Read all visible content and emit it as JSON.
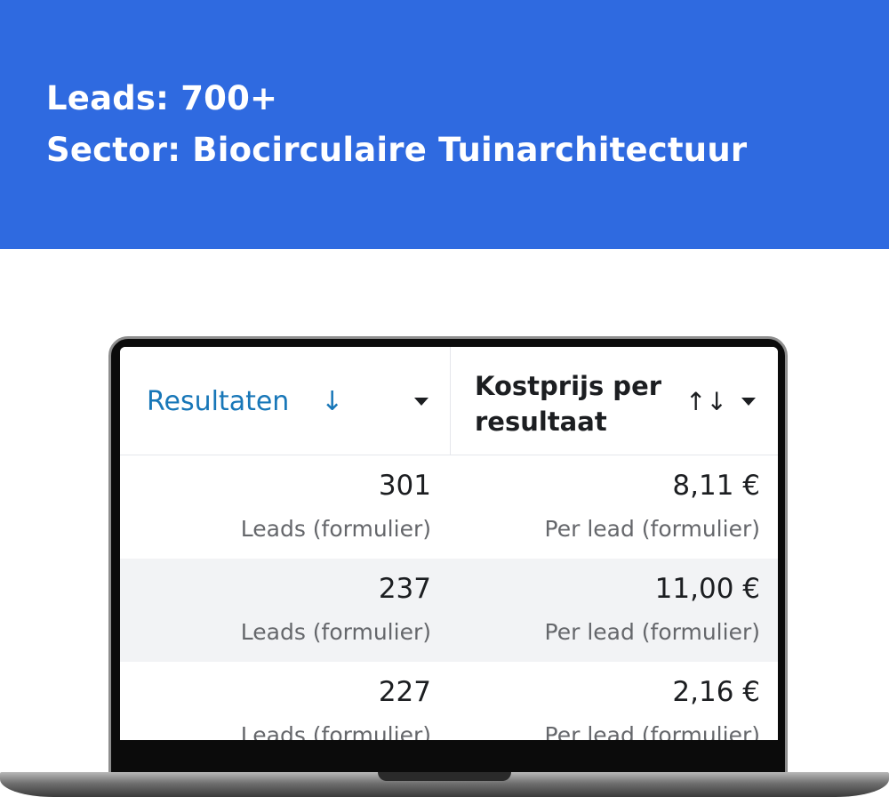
{
  "banner": {
    "line1": "Leads: 700+",
    "line2": "Sector: Biocirculaire Tuinarchitectuur",
    "background_color": "#2f6ae0"
  },
  "table": {
    "columns": [
      {
        "label": "Resultaten",
        "sort_icon": "arrow-down-icon",
        "sort_glyph": "↓",
        "color": "#1877b8"
      },
      {
        "label": "Kostprijs per resultaat",
        "sort_icon": "sort-up-down-icon",
        "sort_glyph": "↑↓"
      }
    ],
    "rows": [
      {
        "results": "301",
        "results_type": "Leads (formulier)",
        "cost": "8,11 €",
        "cost_type": "Per lead (formulier)"
      },
      {
        "results": "237",
        "results_type": "Leads (formulier)",
        "cost": "11,00 €",
        "cost_type": "Per lead (formulier)"
      },
      {
        "results": "227",
        "results_type": "Leads (formulier)",
        "cost": "2,16 €",
        "cost_type": "Per lead (formulier)"
      }
    ]
  }
}
